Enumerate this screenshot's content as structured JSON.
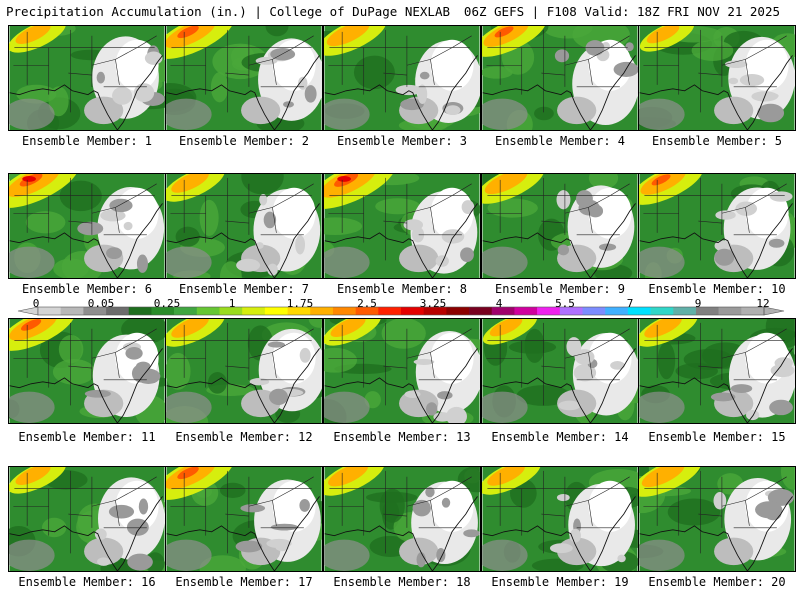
{
  "header": {
    "left": "Precipitation Accumulation (in.) | College of DuPage NEXLAB",
    "right": "06Z GEFS | F108 Valid: 18Z FRI NOV 21 2025"
  },
  "colorbar": {
    "labels": [
      "0",
      "0.05",
      "0.25",
      "1",
      "1.75",
      "2.5",
      "3.25",
      "4",
      "5.5",
      "7",
      "9",
      "12"
    ],
    "colors": [
      "#d4d4d4",
      "#b8b8b8",
      "#8e8e8e",
      "#6c6c6c",
      "#1e6e1e",
      "#2a8c2a",
      "#40a640",
      "#66c633",
      "#9adc1e",
      "#d6ee0e",
      "#ffff00",
      "#ffd800",
      "#ffb000",
      "#ff8800",
      "#ff5a00",
      "#ff2000",
      "#e40000",
      "#b80000",
      "#8c0000",
      "#780020",
      "#a0006c",
      "#d0009e",
      "#ee22ee",
      "#b070ff",
      "#7c8cff",
      "#40b0ff",
      "#00e0ff",
      "#30d6c8",
      "#60b0a8",
      "#808080",
      "#9a9a9a",
      "#b0b0b0"
    ]
  },
  "panels": [
    {
      "label": "Ensemble Member: 1",
      "wet": 0.55
    },
    {
      "label": "Ensemble Member: 2",
      "wet": 0.85
    },
    {
      "label": "Ensemble Member: 3",
      "wet": 0.7
    },
    {
      "label": "Ensemble Member: 4",
      "wet": 0.75
    },
    {
      "label": "Ensemble Member: 5",
      "wet": 0.5
    },
    {
      "label": "Ensemble Member: 6",
      "wet": 0.9
    },
    {
      "label": "Ensemble Member: 7",
      "wet": 0.6
    },
    {
      "label": "Ensemble Member: 8",
      "wet": 0.95
    },
    {
      "label": "Ensemble Member: 9",
      "wet": 0.7
    },
    {
      "label": "Ensemble Member: 10",
      "wet": 0.75
    },
    {
      "label": "Ensemble Member: 11",
      "wet": 0.8
    },
    {
      "label": "Ensemble Member: 12",
      "wet": 0.6
    },
    {
      "label": "Ensemble Member: 13",
      "wet": 0.55
    },
    {
      "label": "Ensemble Member: 14",
      "wet": 0.5
    },
    {
      "label": "Ensemble Member: 15",
      "wet": 0.6
    },
    {
      "label": "Ensemble Member: 16",
      "wet": 0.55
    },
    {
      "label": "Ensemble Member: 17",
      "wet": 0.85
    },
    {
      "label": "Ensemble Member: 18",
      "wet": 0.65
    },
    {
      "label": "Ensemble Member: 19",
      "wet": 0.6
    },
    {
      "label": "Ensemble Member: 20",
      "wet": 0.7
    }
  ]
}
